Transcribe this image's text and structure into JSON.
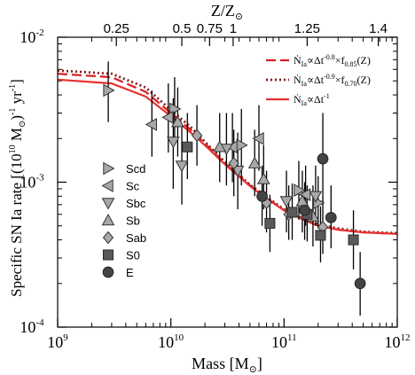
{
  "chart_data": {
    "type": "scatter",
    "xlabel": "Mass [M",
    "xlabel_sub": "⊙",
    "xlabel_close": "]",
    "ylabel": "Specific SN Ia rate [(10",
    "ylabel_exp": "10",
    "ylabel_mid": " M",
    "ylabel_sub": "⊙",
    "ylabel_mid2": ")",
    "ylabel_exp2": "-1",
    "ylabel_end": " yr",
    "ylabel_exp3": "-1",
    "ylabel_close": "]",
    "top_axis_label": "Z/Z",
    "top_axis_sub": "⊙",
    "xscale": "log",
    "yscale": "log",
    "xlim": [
      1000000000.0,
      1000000000000.0
    ],
    "ylim": [
      0.0001,
      0.01
    ],
    "x_ticks": [
      {
        "value": 1000000000.0,
        "base": "10",
        "exp": "9"
      },
      {
        "value": 10000000000.0,
        "base": "10",
        "exp": "10"
      },
      {
        "value": 100000000000.0,
        "base": "10",
        "exp": "11"
      },
      {
        "value": 1000000000000.0,
        "base": "10",
        "exp": "12"
      }
    ],
    "y_ticks": [
      {
        "value": 0.0001,
        "base": "10",
        "exp": "-4"
      },
      {
        "value": 0.001,
        "base": "10",
        "exp": "-3"
      },
      {
        "value": 0.01,
        "base": "10",
        "exp": "-2"
      }
    ],
    "top_ticks": [
      {
        "label": "0.25",
        "mass": 3300000000.0
      },
      {
        "label": "0.5",
        "mass": 12500000000.0
      },
      {
        "label": "0.75",
        "mass": 22000000000.0
      },
      {
        "label": "1",
        "mass": 35500000000.0
      },
      {
        "label": "1.25",
        "mass": 160000000000.0
      },
      {
        "label": "1.4",
        "mass": 680000000000.0
      }
    ],
    "legend_markers": [
      {
        "label": "Scd",
        "marker": "triangle-right"
      },
      {
        "label": "Sc",
        "marker": "triangle-left"
      },
      {
        "label": "Sbc",
        "marker": "triangle-down"
      },
      {
        "label": "Sb",
        "marker": "triangle-up"
      },
      {
        "label": "Sab",
        "marker": "diamond"
      },
      {
        "label": "S0",
        "marker": "square"
      },
      {
        "label": "E",
        "marker": "circle"
      }
    ],
    "legend_lines": [
      {
        "prefix": "Ṅ",
        "sub": "Ia",
        "text": "∝Δt",
        "exp": "-0.8",
        "tail": "×f",
        "tail_sub": "0.85",
        "tail_end": "(Z)",
        "style": "dashed",
        "color": "#d81e1e"
      },
      {
        "prefix": "Ṅ",
        "sub": "Ia",
        "text": "∝Δt",
        "exp": "-0.9",
        "tail": "×f",
        "tail_sub": "0.70",
        "tail_end": "(Z)",
        "style": "dotted",
        "color": "#8a1d1d"
      },
      {
        "prefix": "Ṅ",
        "sub": "Ia",
        "text": "∝Δt",
        "exp": "-1",
        "tail": "",
        "tail_sub": "",
        "tail_end": "",
        "style": "solid",
        "color": "#e83030"
      }
    ],
    "curves": [
      {
        "style": "dashed",
        "color": "#d81e1e",
        "x": [
          1000000000.0,
          3000000000.0,
          6000000000.0,
          10000000000.0,
          15000000000.0,
          20000000000.0,
          30000000000.0,
          50000000000.0,
          70000000000.0,
          100000000000.0,
          150000000000.0,
          200000000000.0,
          300000000000.0,
          500000000000.0,
          1000000000000.0
        ],
        "y": [
          0.0056,
          0.0053,
          0.0042,
          0.003,
          0.0023,
          0.00185,
          0.00135,
          0.00095,
          0.00078,
          0.00064,
          0.00055,
          0.0005,
          0.00047,
          0.00045,
          0.00044
        ]
      },
      {
        "style": "dotted",
        "color": "#8a1d1d",
        "x": [
          1000000000.0,
          3000000000.0,
          6000000000.0,
          10000000000.0,
          15000000000.0,
          20000000000.0,
          30000000000.0,
          50000000000.0,
          70000000000.0,
          100000000000.0,
          150000000000.0,
          200000000000.0,
          300000000000.0,
          500000000000.0,
          1000000000000.0
        ],
        "y": [
          0.0059,
          0.0056,
          0.0045,
          0.00315,
          0.0024,
          0.0019,
          0.00138,
          0.00096,
          0.00079,
          0.00065,
          0.00056,
          0.00051,
          0.00048,
          0.000455,
          0.000445
        ]
      },
      {
        "style": "solid",
        "color": "#e83030",
        "x": [
          1000000000.0,
          3000000000.0,
          6000000000.0,
          10000000000.0,
          15000000000.0,
          20000000000.0,
          30000000000.0,
          50000000000.0,
          70000000000.0,
          100000000000.0,
          150000000000.0,
          200000000000.0,
          300000000000.0,
          500000000000.0,
          1000000000000.0
        ],
        "y": [
          0.0051,
          0.0048,
          0.0039,
          0.00285,
          0.0022,
          0.0018,
          0.00133,
          0.00094,
          0.00077,
          0.00064,
          0.00055,
          0.0005,
          0.00047,
          0.00045,
          0.00044
        ]
      }
    ],
    "points": [
      {
        "type": "Scd",
        "marker": "triangle-right",
        "x": 2800000000.0,
        "y": 0.0043,
        "ylo": 0.0026,
        "yhi": 0.0068
      },
      {
        "type": "Scd",
        "marker": "triangle-right",
        "x": 10800000000.0,
        "y": 0.0032,
        "ylo": 0.0019,
        "yhi": 0.0053
      },
      {
        "type": "Scd",
        "marker": "triangle-right",
        "x": 42000000000.0,
        "y": 0.0018,
        "ylo": 0.00095,
        "yhi": 0.0032
      },
      {
        "type": "Scd",
        "marker": "triangle-right",
        "x": 135000000000.0,
        "y": 0.00088,
        "ylo": 0.00055,
        "yhi": 0.0014
      },
      {
        "type": "Scd",
        "marker": "triangle-right",
        "x": 200000000000.0,
        "y": 0.00072,
        "ylo": 0.00048,
        "yhi": 0.0011
      },
      {
        "type": "Sc",
        "marker": "triangle-left",
        "x": 6800000000.0,
        "y": 0.0025,
        "ylo": 0.0015,
        "yhi": 0.0043
      },
      {
        "type": "Sc",
        "marker": "triangle-left",
        "x": 9500000000.0,
        "y": 0.0028,
        "ylo": 0.0016,
        "yhi": 0.0048
      },
      {
        "type": "Sc",
        "marker": "triangle-left",
        "x": 35000000000.0,
        "y": 0.00175,
        "ylo": 0.001,
        "yhi": 0.003
      },
      {
        "type": "Sc",
        "marker": "triangle-left",
        "x": 60000000000.0,
        "y": 0.002,
        "ylo": 0.0012,
        "yhi": 0.0034
      },
      {
        "type": "Sc",
        "marker": "triangle-left",
        "x": 155000000000.0,
        "y": 0.00082,
        "ylo": 0.0005,
        "yhi": 0.0013
      },
      {
        "type": "Sbc",
        "marker": "triangle-down",
        "x": 10500000000.0,
        "y": 0.0019,
        "ylo": 0.0009,
        "yhi": 0.0038
      },
      {
        "type": "Sbc",
        "marker": "triangle-down",
        "x": 12500000000.0,
        "y": 0.0013,
        "ylo": 0.0007,
        "yhi": 0.0024
      },
      {
        "type": "Sbc",
        "marker": "triangle-down",
        "x": 31000000000.0,
        "y": 0.0017,
        "ylo": 0.00095,
        "yhi": 0.003
      },
      {
        "type": "Sbc",
        "marker": "triangle-down",
        "x": 39000000000.0,
        "y": 0.0012,
        "ylo": 0.00065,
        "yhi": 0.0022
      },
      {
        "type": "Sbc",
        "marker": "triangle-down",
        "x": 105000000000.0,
        "y": 0.00074,
        "ylo": 0.00045,
        "yhi": 0.0012
      },
      {
        "type": "Sbc",
        "marker": "triangle-down",
        "x": 190000000000.0,
        "y": 0.0008,
        "ylo": 0.0005,
        "yhi": 0.0013
      },
      {
        "type": "Sb",
        "marker": "triangle-up",
        "x": 11500000000.0,
        "y": 0.0026,
        "ylo": 0.0015,
        "yhi": 0.0045
      },
      {
        "type": "Sb",
        "marker": "triangle-up",
        "x": 27000000000.0,
        "y": 0.00175,
        "ylo": 0.001,
        "yhi": 0.003
      },
      {
        "type": "Sb",
        "marker": "triangle-up",
        "x": 55000000000.0,
        "y": 0.00135,
        "ylo": 0.0008,
        "yhi": 0.0023
      },
      {
        "type": "Sb",
        "marker": "triangle-up",
        "x": 66000000000.0,
        "y": 0.00105,
        "ylo": 0.00065,
        "yhi": 0.0018
      },
      {
        "type": "Sb",
        "marker": "triangle-up",
        "x": 145000000000.0,
        "y": 0.00074,
        "ylo": 0.00045,
        "yhi": 0.0012
      },
      {
        "type": "Sb",
        "marker": "triangle-up",
        "x": 180000000000.0,
        "y": 0.00058,
        "ylo": 0.00036,
        "yhi": 0.00095
      },
      {
        "type": "Sab",
        "marker": "diamond",
        "x": 17000000000.0,
        "y": 0.0021,
        "ylo": 0.0013,
        "yhi": 0.0034
      },
      {
        "type": "Sab",
        "marker": "diamond",
        "x": 36000000000.0,
        "y": 0.00135,
        "ylo": 0.0008,
        "yhi": 0.0023
      },
      {
        "type": "Sab",
        "marker": "diamond",
        "x": 70000000000.0,
        "y": 0.00072,
        "ylo": 0.00045,
        "yhi": 0.0012
      },
      {
        "type": "Sab",
        "marker": "diamond",
        "x": 110000000000.0,
        "y": 0.0006,
        "ylo": 0.0004,
        "yhi": 0.00095
      },
      {
        "type": "Sab",
        "marker": "diamond",
        "x": 220000000000.0,
        "y": 0.00049,
        "ylo": 0.00032,
        "yhi": 0.00075
      },
      {
        "type": "S0",
        "marker": "square",
        "x": 14000000000.0,
        "y": 0.00175,
        "ylo": 0.00105,
        "yhi": 0.003
      },
      {
        "type": "S0",
        "marker": "square",
        "x": 75000000000.0,
        "y": 0.00052,
        "ylo": 0.00033,
        "yhi": 0.00082
      },
      {
        "type": "S0",
        "marker": "square",
        "x": 118000000000.0,
        "y": 0.00062,
        "ylo": 0.0004,
        "yhi": 0.00098
      },
      {
        "type": "S0",
        "marker": "square",
        "x": 160000000000.0,
        "y": 0.0006,
        "ylo": 0.00039,
        "yhi": 0.00095
      },
      {
        "type": "S0",
        "marker": "square",
        "x": 210000000000.0,
        "y": 0.00043,
        "ylo": 0.00028,
        "yhi": 0.00068
      },
      {
        "type": "S0",
        "marker": "square",
        "x": 410000000000.0,
        "y": 0.0004,
        "ylo": 0.00025,
        "yhi": 0.00064
      },
      {
        "type": "E",
        "marker": "circle",
        "x": 64000000000.0,
        "y": 0.0008,
        "ylo": 0.0005,
        "yhi": 0.0013
      },
      {
        "type": "E",
        "marker": "circle",
        "x": 152000000000.0,
        "y": 0.00064,
        "ylo": 0.0004,
        "yhi": 0.001
      },
      {
        "type": "E",
        "marker": "circle",
        "x": 220000000000.0,
        "y": 0.00145,
        "ylo": 0.0007,
        "yhi": 0.003
      },
      {
        "type": "E",
        "marker": "circle",
        "x": 260000000000.0,
        "y": 0.00057,
        "ylo": 0.00035,
        "yhi": 0.00095
      },
      {
        "type": "E",
        "marker": "circle",
        "x": 470000000000.0,
        "y": 0.0002,
        "ylo": 0.00012,
        "yhi": 0.00033
      }
    ]
  }
}
